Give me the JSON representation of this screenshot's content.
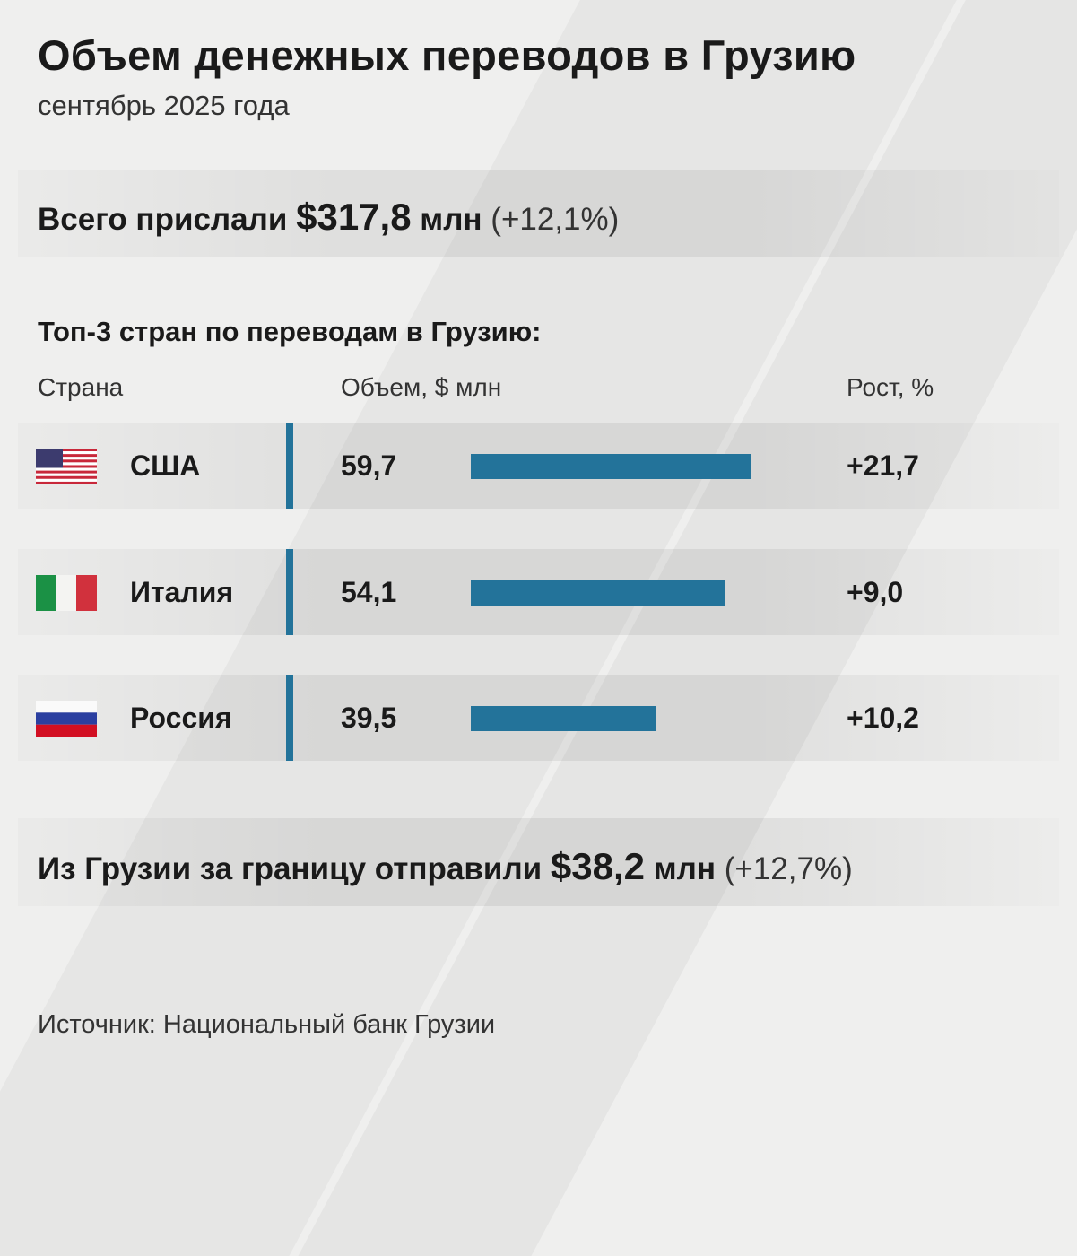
{
  "title": "Объем денежных переводов в Грузию",
  "subtitle": "сентябрь 2025 года",
  "total": {
    "prefix": "Всего прислали ",
    "amount": "$317,8",
    "unit": " млн ",
    "change": "(+12,1%)"
  },
  "section_title": "Топ-3 стран по переводам в Грузию:",
  "columns": {
    "country": "Страна",
    "volume": "Объем, $ млн",
    "growth": "Рост, %"
  },
  "chart_data": {
    "type": "bar",
    "orientation": "horizontal",
    "categories": [
      "США",
      "Италия",
      "Россия"
    ],
    "values": [
      59.7,
      54.1,
      39.5
    ],
    "value_labels": [
      "59,7",
      "54,1",
      "39,5"
    ],
    "growth_labels": [
      "+21,7",
      "+9,0",
      "+10,2"
    ],
    "growth": [
      21.7,
      9.0,
      10.2
    ],
    "flags": [
      "us-flag-icon",
      "italy-flag-icon",
      "russia-flag-icon"
    ],
    "bar_color": "#23739a",
    "xlabel": "Объем, $ млн"
  },
  "outflow": {
    "prefix": "Из Грузии за границу отправили ",
    "amount": "$38,2",
    "unit": " млн ",
    "change": "(+12,7%)"
  },
  "source": "Источник: Национальный банк Грузии"
}
